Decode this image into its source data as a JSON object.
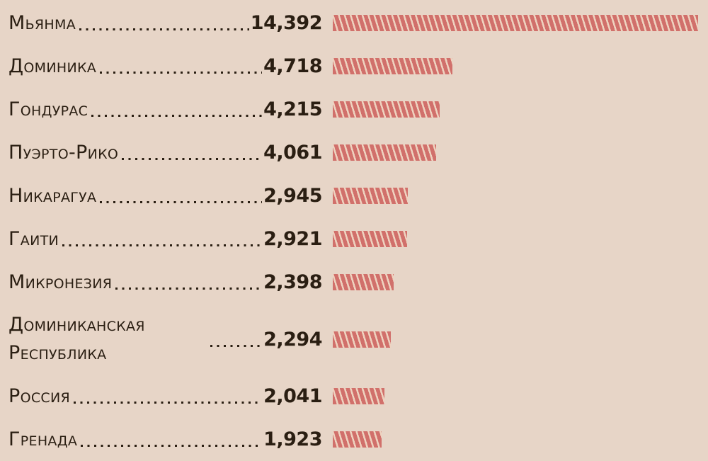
{
  "colors": {
    "background": "#e7d5c7",
    "bar_stripe": "#d1706b",
    "bar_stripe_gap": "#eed3c0",
    "text": "#2a1e12"
  },
  "rows": [
    {
      "label": "Мьянма",
      "value_text": "14,392",
      "value": 14392,
      "two_line": false
    },
    {
      "label": "Доминика",
      "value_text": "4,718",
      "value": 4718,
      "two_line": false
    },
    {
      "label": "Гондурас",
      "value_text": "4,215",
      "value": 4215,
      "two_line": false
    },
    {
      "label": "Пуэрто-Рико",
      "value_text": "4,061",
      "value": 4061,
      "two_line": false
    },
    {
      "label": "Никарагуа",
      "value_text": "2,945",
      "value": 2945,
      "two_line": false
    },
    {
      "label": "Гаити",
      "value_text": "2,921",
      "value": 2921,
      "two_line": false
    },
    {
      "label": "Микронезия",
      "value_text": "2,398",
      "value": 2398,
      "two_line": false
    },
    {
      "label": "Доминиканская Республика",
      "value_text": "2,294",
      "value": 2294,
      "two_line": true
    },
    {
      "label": "Россия",
      "value_text": "2,041",
      "value": 2041,
      "two_line": false
    },
    {
      "label": "Гренада",
      "value_text": "1,923",
      "value": 1923,
      "two_line": false
    }
  ],
  "chart_data": {
    "type": "bar",
    "orientation": "horizontal",
    "categories": [
      "Мьянма",
      "Доминика",
      "Гондурас",
      "Пуэрто-Рико",
      "Никарагуа",
      "Гаити",
      "Микронезия",
      "Доминиканская Республика",
      "Россия",
      "Гренада"
    ],
    "values": [
      14392,
      4718,
      4215,
      4061,
      2945,
      2921,
      2398,
      2294,
      2041,
      1923
    ],
    "value_labels": [
      "14,392",
      "4,718",
      "4,215",
      "4,061",
      "2,945",
      "2,921",
      "2,398",
      "2,294",
      "2,041",
      "1,923"
    ],
    "title": "",
    "xlabel": "",
    "ylabel": "",
    "xlim": [
      0,
      14392
    ],
    "grid": false,
    "legend": false,
    "bar_style": "diagonal-hatched",
    "leader_style": "dotted"
  }
}
